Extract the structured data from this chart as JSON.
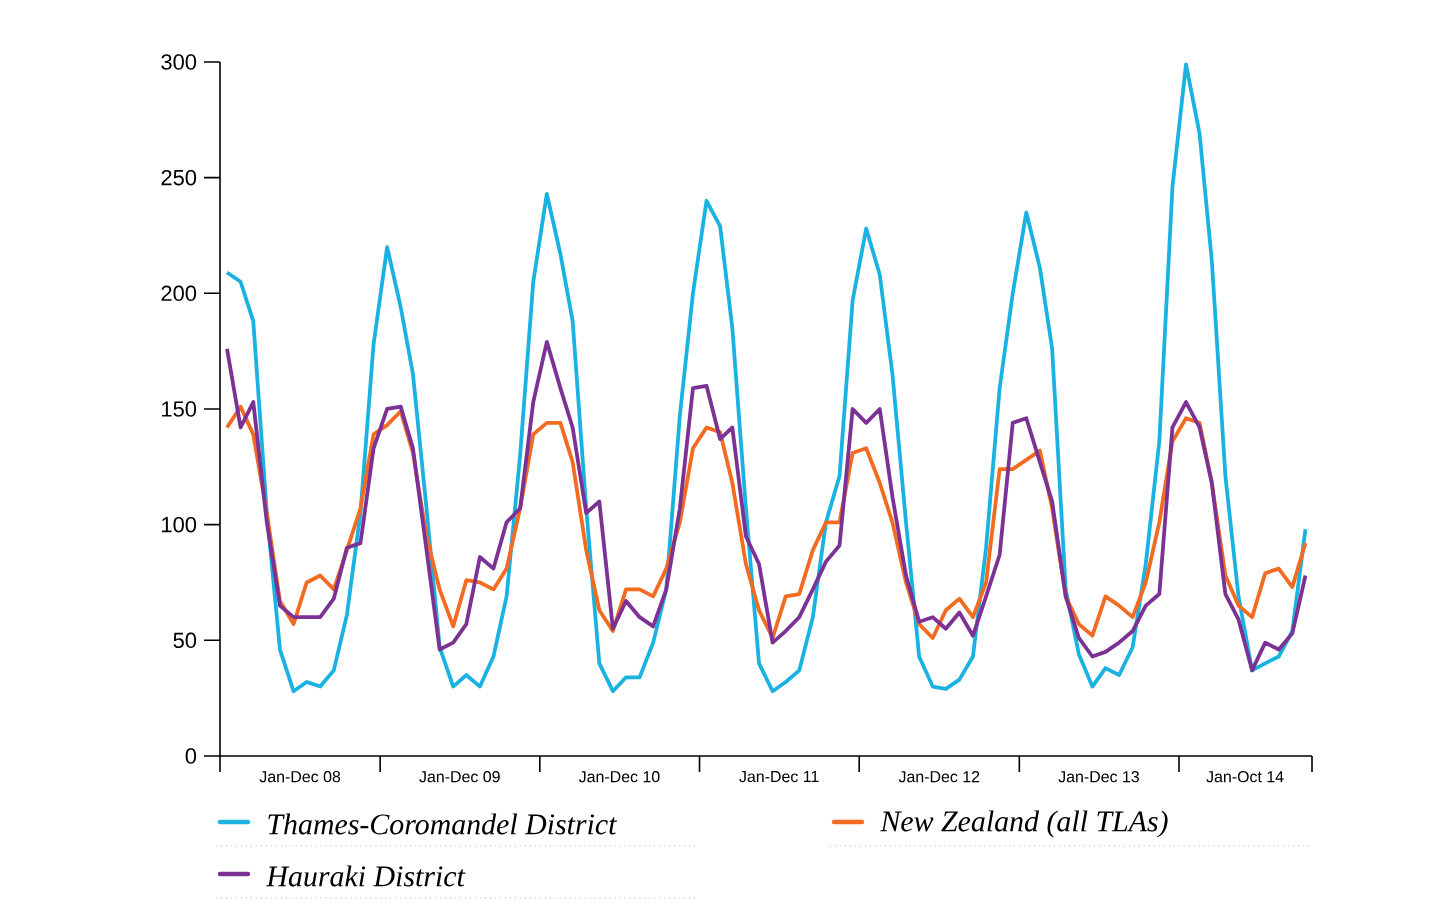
{
  "chart_data": {
    "type": "line",
    "x": [
      "2008-01",
      "2008-02",
      "2008-03",
      "2008-04",
      "2008-05",
      "2008-06",
      "2008-07",
      "2008-08",
      "2008-09",
      "2008-10",
      "2008-11",
      "2008-12",
      "2009-01",
      "2009-02",
      "2009-03",
      "2009-04",
      "2009-05",
      "2009-06",
      "2009-07",
      "2009-08",
      "2009-09",
      "2009-10",
      "2009-11",
      "2009-12",
      "2010-01",
      "2010-02",
      "2010-03",
      "2010-04",
      "2010-05",
      "2010-06",
      "2010-07",
      "2010-08",
      "2010-09",
      "2010-10",
      "2010-11",
      "2010-12",
      "2011-01",
      "2011-02",
      "2011-03",
      "2011-04",
      "2011-05",
      "2011-06",
      "2011-07",
      "2011-08",
      "2011-09",
      "2011-10",
      "2011-11",
      "2011-12",
      "2012-01",
      "2012-02",
      "2012-03",
      "2012-04",
      "2012-05",
      "2012-06",
      "2012-07",
      "2012-08",
      "2012-09",
      "2012-10",
      "2012-11",
      "2012-12",
      "2013-01",
      "2013-02",
      "2013-03",
      "2013-04",
      "2013-05",
      "2013-06",
      "2013-07",
      "2013-08",
      "2013-09",
      "2013-10",
      "2013-11",
      "2013-12",
      "2014-01",
      "2014-02",
      "2014-03",
      "2014-04",
      "2014-05",
      "2014-06",
      "2014-07",
      "2014-08",
      "2014-09",
      "2014-10"
    ],
    "series": [
      {
        "name": "Thames-Coromandel District",
        "color": "#1ab2e0",
        "values": [
          209,
          205,
          188,
          105,
          46,
          28,
          32,
          30,
          37,
          61,
          105,
          178,
          220,
          194,
          165,
          107,
          47,
          30,
          35,
          30,
          43,
          69,
          130,
          205,
          243,
          217,
          188,
          107,
          40,
          28,
          34,
          34,
          49,
          72,
          147,
          200,
          240,
          229,
          185,
          107,
          40,
          28,
          32,
          37,
          60,
          101,
          121,
          197,
          228,
          208,
          165,
          101,
          43,
          30,
          29,
          33,
          43,
          90,
          159,
          200,
          235,
          211,
          176,
          72,
          44,
          30,
          38,
          35,
          47,
          83,
          136,
          246,
          299,
          269,
          214,
          121,
          69,
          37,
          40,
          43,
          54,
          98
        ]
      },
      {
        "name": "New Zealand (all TLAs)",
        "color": "#f26b21",
        "values": [
          142,
          151,
          139,
          105,
          67,
          57,
          75,
          78,
          72,
          89,
          107,
          139,
          143,
          149,
          131,
          95,
          72,
          56,
          76,
          75,
          72,
          81,
          107,
          139,
          144,
          144,
          127,
          89,
          63,
          54,
          72,
          72,
          69,
          81,
          101,
          133,
          142,
          140,
          118,
          83,
          63,
          51,
          69,
          70,
          89,
          101,
          101,
          131,
          133,
          118,
          101,
          75,
          57,
          51,
          63,
          68,
          60,
          75,
          124,
          124,
          128,
          132,
          107,
          69,
          57,
          52,
          69,
          65,
          60,
          75,
          101,
          136,
          146,
          144,
          118,
          78,
          65,
          60,
          79,
          81,
          73,
          92
        ]
      },
      {
        "name": "Hauraki District",
        "color": "#7b3294",
        "values": [
          176,
          142,
          153,
          101,
          65,
          60,
          60,
          60,
          68,
          90,
          92,
          133,
          150,
          151,
          133,
          89,
          46,
          49,
          57,
          86,
          81,
          101,
          107,
          153,
          179,
          159,
          142,
          105,
          110,
          55,
          67,
          60,
          56,
          72,
          107,
          159,
          160,
          137,
          142,
          95,
          83,
          49,
          54,
          60,
          72,
          84,
          91,
          150,
          144,
          150,
          112,
          78,
          58,
          60,
          55,
          62,
          52,
          69,
          87,
          144,
          146,
          127,
          110,
          69,
          51,
          43,
          45,
          49,
          54,
          65,
          70,
          142,
          153,
          142,
          118,
          70,
          59,
          37,
          49,
          46,
          53,
          78
        ]
      }
    ],
    "xlim": [
      "2007-12-16",
      "2014-10-16"
    ],
    "xticks": [
      {
        "value": "2007-12-16",
        "label": null
      },
      {
        "value": "2008-06-16",
        "label": "Jan-Dec 08"
      },
      {
        "value": "2008-12-16",
        "label": null
      },
      {
        "value": "2009-06-16",
        "label": "Jan-Dec 09"
      },
      {
        "value": "2009-12-16",
        "label": null
      },
      {
        "value": "2010-06-16",
        "label": "Jan-Dec 10"
      },
      {
        "value": "2010-12-16",
        "label": null
      },
      {
        "value": "2011-06-16",
        "label": "Jan-Dec 11"
      },
      {
        "value": "2011-12-16",
        "label": null
      },
      {
        "value": "2012-06-16",
        "label": "Jan-Dec 12"
      },
      {
        "value": "2012-12-16",
        "label": null
      },
      {
        "value": "2013-06-16",
        "label": "Jan-Dec 13"
      },
      {
        "value": "2013-12-16",
        "label": null
      },
      {
        "value": "2014-05-16",
        "label": "Jan-Oct 14"
      },
      {
        "value": "2014-10-16",
        "label": null
      }
    ],
    "ylim": [
      0,
      300
    ],
    "yticks": [
      0,
      50,
      100,
      150,
      200,
      250,
      300
    ],
    "legend": "bottom"
  }
}
